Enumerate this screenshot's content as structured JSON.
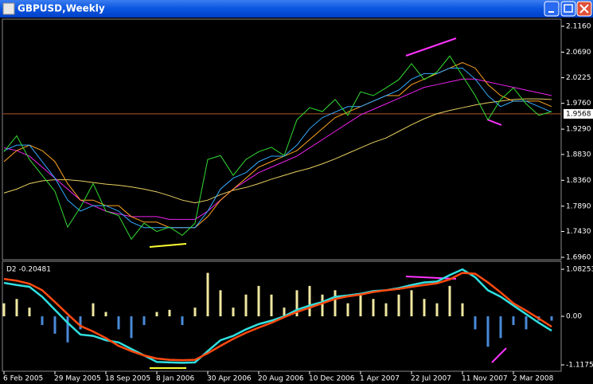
{
  "window": {
    "title": "GBPUSD,Weekly"
  },
  "chart_data": [
    {
      "type": "line",
      "ylim": [
        1.696,
        2.116
      ],
      "yticks": [
        {
          "value": 2.116,
          "label": "2.1160"
        },
        {
          "value": 2.069,
          "label": "2.0690"
        },
        {
          "value": 2.0225,
          "label": "2.0225"
        },
        {
          "value": 1.976,
          "label": "1.9760"
        },
        {
          "value": 1.929,
          "label": "1.9290"
        },
        {
          "value": 1.883,
          "label": "1.8830"
        },
        {
          "value": 1.836,
          "label": "1.8360"
        },
        {
          "value": 1.789,
          "label": "1.7890"
        },
        {
          "value": 1.743,
          "label": "1.7430"
        },
        {
          "value": 1.696,
          "label": "1.6960"
        }
      ],
      "last_price": 1.9568,
      "series": [
        {
          "name": "GBPUSD",
          "color": "#33dd33",
          "values": [
            1.888,
            1.917,
            1.874,
            1.845,
            1.816,
            1.751,
            1.787,
            1.83,
            1.78,
            1.772,
            1.729,
            1.758,
            1.743,
            1.751,
            1.736,
            1.758,
            1.874,
            1.881,
            1.845,
            1.874,
            1.888,
            1.896,
            1.881,
            1.946,
            1.968,
            1.961,
            1.983,
            1.954,
            1.997,
            1.99,
            2.004,
            2.019,
            2.048,
            2.019,
            2.033,
            2.062,
            2.026,
            1.99,
            1.946,
            1.983,
            2.004,
            1.975,
            1.954,
            1.961
          ]
        },
        {
          "color": "#33aaff",
          "values": [
            1.89,
            1.9,
            1.9,
            1.87,
            1.84,
            1.8,
            1.78,
            1.79,
            1.79,
            1.78,
            1.76,
            1.75,
            1.75,
            1.75,
            1.75,
            1.75,
            1.78,
            1.82,
            1.84,
            1.85,
            1.87,
            1.88,
            1.88,
            1.9,
            1.93,
            1.95,
            1.96,
            1.97,
            1.97,
            1.98,
            1.99,
            2.0,
            2.02,
            2.03,
            2.03,
            2.04,
            2.04,
            2.02,
            1.99,
            1.97,
            1.98,
            1.98,
            1.97,
            1.96
          ]
        },
        {
          "color": "#ffa520",
          "values": [
            1.87,
            1.89,
            1.9,
            1.89,
            1.87,
            1.83,
            1.8,
            1.8,
            1.79,
            1.79,
            1.77,
            1.76,
            1.76,
            1.75,
            1.75,
            1.75,
            1.77,
            1.8,
            1.82,
            1.84,
            1.86,
            1.87,
            1.88,
            1.89,
            1.91,
            1.93,
            1.95,
            1.96,
            1.97,
            1.98,
            1.99,
            1.99,
            2.01,
            2.02,
            2.03,
            2.04,
            2.05,
            2.04,
            2.01,
            1.99,
            1.98,
            1.98,
            1.98,
            1.97
          ]
        },
        {
          "color": "#ee22ee",
          "values": [
            1.895,
            1.89,
            1.88,
            1.86,
            1.84,
            1.82,
            1.8,
            1.79,
            1.78,
            1.775,
            1.77,
            1.77,
            1.77,
            1.765,
            1.765,
            1.765,
            1.78,
            1.8,
            1.82,
            1.835,
            1.85,
            1.86,
            1.87,
            1.88,
            1.895,
            1.91,
            1.925,
            1.94,
            1.955,
            1.965,
            1.975,
            1.985,
            1.995,
            2.005,
            2.01,
            2.015,
            2.02,
            2.02,
            2.015,
            2.01,
            2.005,
            2.0,
            1.995,
            1.99
          ]
        },
        {
          "color": "#e8d060",
          "values": [
            1.813,
            1.82,
            1.83,
            1.835,
            1.837,
            1.837,
            1.835,
            1.832,
            1.829,
            1.827,
            1.824,
            1.82,
            1.815,
            1.808,
            1.8,
            1.795,
            1.8,
            1.81,
            1.818,
            1.823,
            1.83,
            1.838,
            1.845,
            1.852,
            1.858,
            1.866,
            1.875,
            1.885,
            1.895,
            1.905,
            1.913,
            1.925,
            1.937,
            1.948,
            1.957,
            1.963,
            1.968,
            1.973,
            1.977,
            1.98,
            1.983,
            1.984,
            1.984,
            1.983
          ]
        }
      ]
    },
    {
      "type": "bar",
      "title": "D2 -0.20481",
      "categories": [
        "6 Feb 2005",
        null,
        null,
        null,
        "29 May 2005",
        null,
        null,
        null,
        "18 Sep 2005",
        null,
        null,
        null,
        "8 Jan 2006",
        null,
        null,
        null,
        "30 Apr 2006",
        null,
        null,
        null,
        "20 Aug 2006",
        null,
        null,
        null,
        "10 Dec 2006",
        null,
        null,
        null,
        "1 Apr 2007",
        null,
        null,
        null,
        "22 Jul 2007",
        null,
        null,
        null,
        "11 Nov 2007",
        null,
        null,
        null,
        "2 Mar 2008",
        null,
        null,
        null
      ],
      "ylim": [
        -1.11752,
        1.08253
      ],
      "yticks": [
        1.08253,
        {
          "value": 0,
          "label": "0.00"
        },
        -1.11752
      ],
      "positive_color": "#f0e8a0",
      "negative_color": "#4a8ad8",
      "values": [
        0.3,
        0.4,
        0.2,
        -0.2,
        -0.4,
        -0.6,
        -0.3,
        0.3,
        0.1,
        -0.3,
        -0.5,
        -0.2,
        0.1,
        0.15,
        -0.2,
        0.2,
        1.0,
        0.6,
        0.2,
        0.5,
        0.7,
        0.5,
        0.2,
        0.6,
        0.7,
        0.5,
        0.6,
        0.3,
        0.5,
        0.4,
        0.3,
        0.5,
        0.6,
        0.4,
        0.3,
        0.7,
        0.3,
        -0.3,
        -0.7,
        -0.5,
        -0.2,
        -0.3,
        -0.1,
        -0.1
      ],
      "series": [
        {
          "color": "#30e0e0",
          "values": [
            0.77,
            0.72,
            0.68,
            0.45,
            0.15,
            -0.15,
            -0.42,
            -0.45,
            -0.55,
            -0.6,
            -0.75,
            -0.9,
            -1.05,
            -1.06,
            -1.07,
            -1.06,
            -0.8,
            -0.55,
            -0.45,
            -0.3,
            -0.18,
            -0.1,
            0.0,
            0.15,
            0.25,
            0.33,
            0.45,
            0.48,
            0.52,
            0.58,
            0.6,
            0.65,
            0.72,
            0.78,
            0.8,
            0.95,
            1.08,
            0.9,
            0.6,
            0.45,
            0.25,
            0.05,
            -0.15,
            -0.33
          ]
        },
        {
          "color": "#ff4a10",
          "values": [
            0.86,
            0.82,
            0.75,
            0.6,
            0.33,
            0.05,
            -0.22,
            -0.35,
            -0.5,
            -0.68,
            -0.8,
            -0.9,
            -0.97,
            -1.0,
            -1.01,
            -1.0,
            -0.85,
            -0.68,
            -0.52,
            -0.38,
            -0.26,
            -0.15,
            -0.02,
            0.1,
            0.2,
            0.3,
            0.4,
            0.46,
            0.5,
            0.56,
            0.6,
            0.63,
            0.68,
            0.72,
            0.76,
            0.85,
            1.0,
            0.98,
            0.78,
            0.55,
            0.3,
            0.13,
            -0.05,
            -0.24
          ]
        }
      ]
    }
  ]
}
